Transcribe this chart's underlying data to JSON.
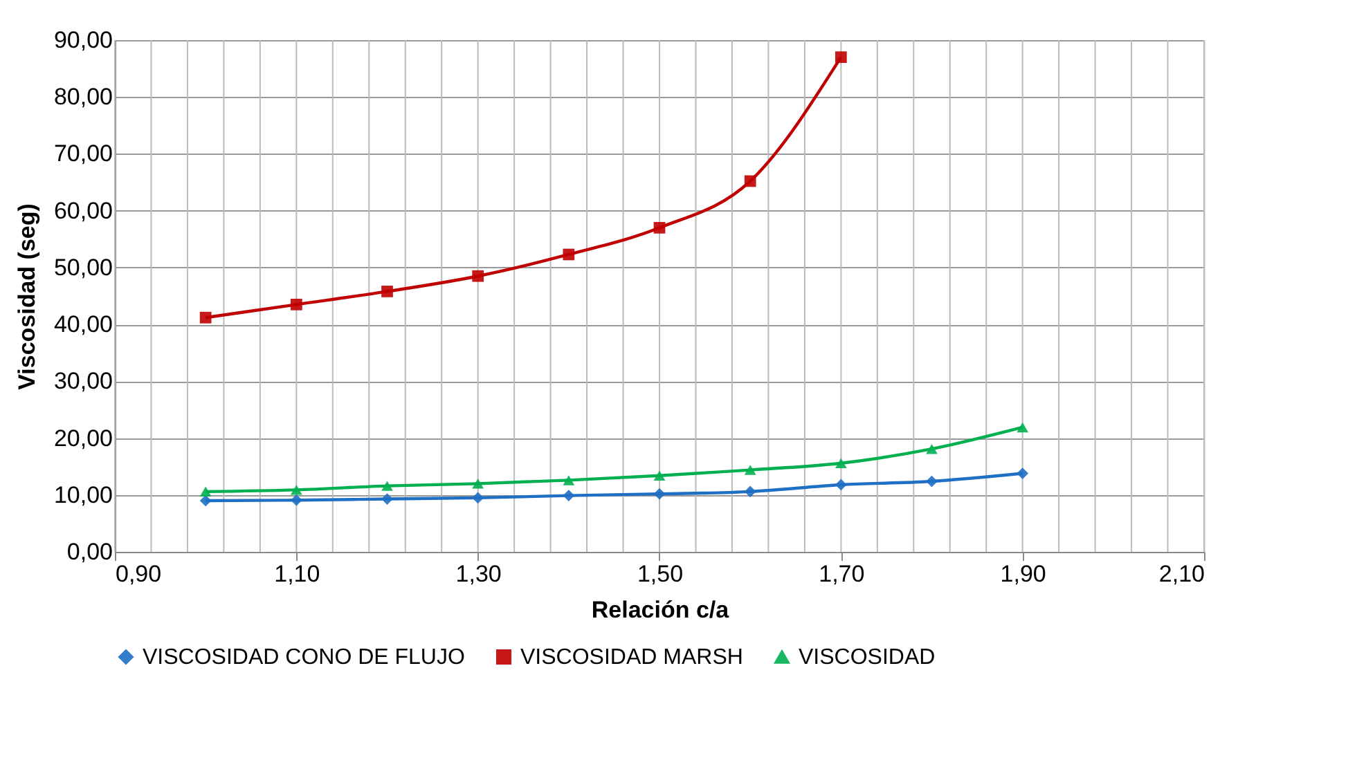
{
  "chart_data": {
    "type": "line",
    "xlabel": "Relación c/a",
    "ylabel": "Viscosidad (seg)",
    "x": [
      1.0,
      1.1,
      1.2,
      1.3,
      1.4,
      1.5,
      1.6,
      1.7,
      1.8,
      1.9
    ],
    "series": [
      {
        "name": "VISCOSIDAD CONO DE FLUJO",
        "color": "#1f6fc4",
        "marker": "diamond",
        "values": [
          9.0,
          9.1,
          9.3,
          9.5,
          9.9,
          10.2,
          10.6,
          11.8,
          12.4,
          13.8
        ]
      },
      {
        "name": "VISCOSIDAD MARSH",
        "color": "#c00000",
        "marker": "square",
        "values": [
          41.2,
          43.5,
          45.8,
          48.5,
          52.3,
          57.0,
          65.2,
          87.0,
          null,
          null
        ]
      },
      {
        "name": "VISCOSIDAD",
        "color": "#00b050",
        "marker": "triangle",
        "values": [
          10.6,
          10.9,
          11.6,
          12.0,
          12.6,
          13.4,
          14.4,
          15.6,
          18.1,
          21.9
        ]
      }
    ],
    "xlim": [
      0.9,
      2.1
    ],
    "xticks": [
      {
        "value": 0.9,
        "label": "0,90"
      },
      {
        "value": 1.1,
        "label": "1,10"
      },
      {
        "value": 1.3,
        "label": "1,30"
      },
      {
        "value": 1.5,
        "label": "1,50"
      },
      {
        "value": 1.7,
        "label": "1,70"
      },
      {
        "value": 1.9,
        "label": "1,90"
      },
      {
        "value": 2.1,
        "label": "2,10"
      }
    ],
    "ylim": [
      0,
      90
    ],
    "yticks": [
      {
        "value": 0,
        "label": "0,00"
      },
      {
        "value": 10,
        "label": "10,00"
      },
      {
        "value": 20,
        "label": "20,00"
      },
      {
        "value": 30,
        "label": "30,00"
      },
      {
        "value": 40,
        "label": "40,00"
      },
      {
        "value": 50,
        "label": "50,00"
      },
      {
        "value": 60,
        "label": "60,00"
      },
      {
        "value": 70,
        "label": "70,00"
      },
      {
        "value": 80,
        "label": "80,00"
      },
      {
        "value": 90,
        "label": "90,00"
      }
    ],
    "grid": true,
    "legend": "bottom",
    "line_style": "solid"
  }
}
